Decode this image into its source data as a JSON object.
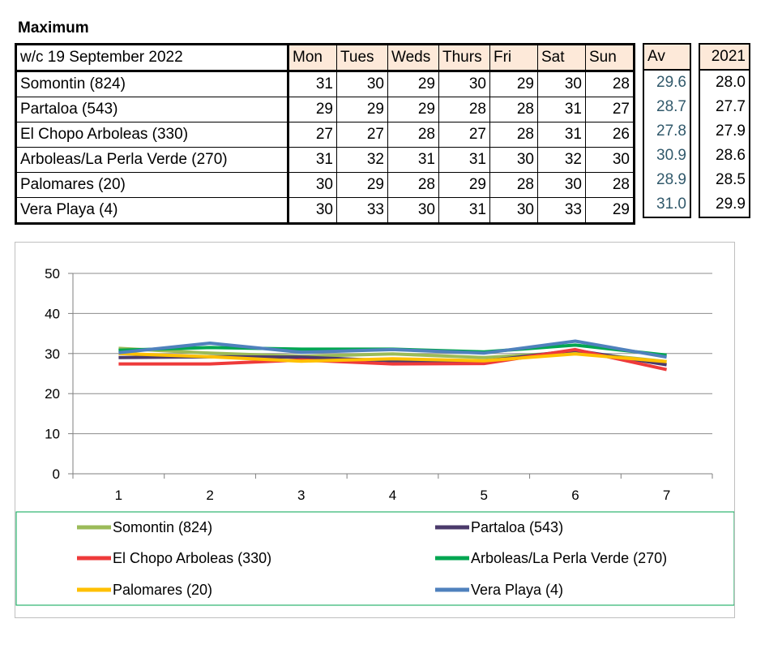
{
  "heading": "Maximum",
  "table": {
    "corner": "w/c 19 September 2022",
    "days": [
      "Mon",
      "Tues",
      "Weds",
      "Thurs",
      "Fri",
      "Sat",
      "Sun"
    ],
    "av_label": "Av",
    "year_label": "2021",
    "rows": [
      {
        "site": "Somontin (824)",
        "values": [
          "31",
          "30",
          "29",
          "30",
          "29",
          "30",
          "28"
        ],
        "av": "29.6",
        "y2021": "28.0"
      },
      {
        "site": "Partaloa (543)",
        "values": [
          "29",
          "29",
          "29",
          "28",
          "28",
          "31",
          "27"
        ],
        "av": "28.7",
        "y2021": "27.7"
      },
      {
        "site": "El Chopo  Arboleas (330)",
        "values": [
          "27",
          "27",
          "28",
          "27",
          "28",
          "31",
          "26"
        ],
        "av": "27.8",
        "y2021": "27.9"
      },
      {
        "site": "Arboleas/La Perla Verde (270)",
        "values": [
          "31",
          "32",
          "31",
          "31",
          "30",
          "32",
          "30"
        ],
        "av": "30.9",
        "y2021": "28.6"
      },
      {
        "site": "Palomares (20)",
        "values": [
          "30",
          "29",
          "28",
          "29",
          "28",
          "30",
          "28"
        ],
        "av": "28.9",
        "y2021": "28.5"
      },
      {
        "site": "Vera Playa (4)",
        "values": [
          "30",
          "33",
          "30",
          "31",
          "30",
          "33",
          "29"
        ],
        "av": "31.0",
        "y2021": "29.9"
      }
    ]
  },
  "chart_data": {
    "type": "line",
    "x": [
      1,
      2,
      3,
      4,
      5,
      6,
      7
    ],
    "ylim": [
      0,
      50
    ],
    "yticks": [
      0,
      10,
      20,
      30,
      40,
      50
    ],
    "grid": true,
    "legend_placement": "bottom",
    "series": [
      {
        "name": "Somontin (824)",
        "color": "#9bbb59",
        "values": [
          31.3,
          30.1,
          29.3,
          29.9,
          29.0,
          30.3,
          28.0
        ]
      },
      {
        "name": "Partaloa (543)",
        "color": "#4b3a6b",
        "values": [
          29.0,
          29.2,
          29.1,
          28.2,
          28.1,
          30.8,
          27.2
        ]
      },
      {
        "name": "El Chopo  Arboleas (330)",
        "color": "#ee3a3a",
        "values": [
          27.4,
          27.4,
          28.4,
          27.4,
          27.5,
          31.0,
          26.0
        ]
      },
      {
        "name": "Arboleas/La Perla Verde (270)",
        "color": "#00a651",
        "values": [
          30.8,
          31.5,
          31.1,
          31.1,
          30.4,
          32.1,
          29.6
        ]
      },
      {
        "name": "Palomares (20)",
        "color": "#ffc000",
        "values": [
          30.0,
          29.2,
          28.1,
          28.7,
          28.2,
          29.9,
          28.0
        ]
      },
      {
        "name": "Vera Playa (4)",
        "color": "#4f81bd",
        "values": [
          30.2,
          32.6,
          30.3,
          31.0,
          30.1,
          33.1,
          29.1
        ]
      }
    ]
  }
}
